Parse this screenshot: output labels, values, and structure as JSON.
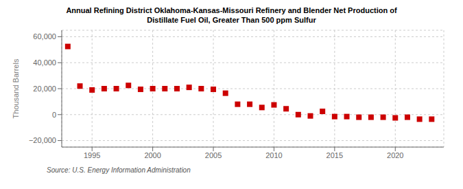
{
  "chart_data": {
    "type": "scatter",
    "title": "Annual Refining District Oklahoma-Kansas-Missouri Refinery and Blender Net Production of\nDistillate Fuel Oil, Greater Than 500 ppm Sulfur",
    "ylabel": "Thousand Barrels",
    "source": "Source: U.S. Energy Information Administration",
    "x": [
      1993,
      1994,
      1995,
      1996,
      1997,
      1998,
      1999,
      2000,
      2001,
      2002,
      2003,
      2004,
      2005,
      2006,
      2007,
      2008,
      2009,
      2010,
      2011,
      2012,
      2013,
      2014,
      2015,
      2016,
      2017,
      2018,
      2019,
      2020,
      2021,
      2022,
      2023
    ],
    "values": [
      52500,
      22000,
      19000,
      20000,
      20000,
      22500,
      19500,
      20000,
      20000,
      20000,
      21000,
      20000,
      19500,
      16500,
      8000,
      8000,
      5500,
      7500,
      4500,
      0,
      -1000,
      2500,
      -1500,
      -1500,
      -2000,
      -2000,
      -2000,
      -2500,
      -2000,
      -3500,
      -3500
    ],
    "color": "#cc0000",
    "marker": "square",
    "xlim": [
      1992.5,
      2024.0
    ],
    "ylim": [
      -25000,
      65000
    ],
    "xticks": [
      1995,
      2000,
      2005,
      2010,
      2015,
      2020
    ],
    "yticks": [
      {
        "value": -20000,
        "label": "−20,000"
      },
      0,
      {
        "value": 20000,
        "label": "20,000"
      },
      {
        "value": 40000,
        "label": "40,000"
      },
      {
        "value": 60000,
        "label": "60,000"
      }
    ],
    "grid": true
  }
}
